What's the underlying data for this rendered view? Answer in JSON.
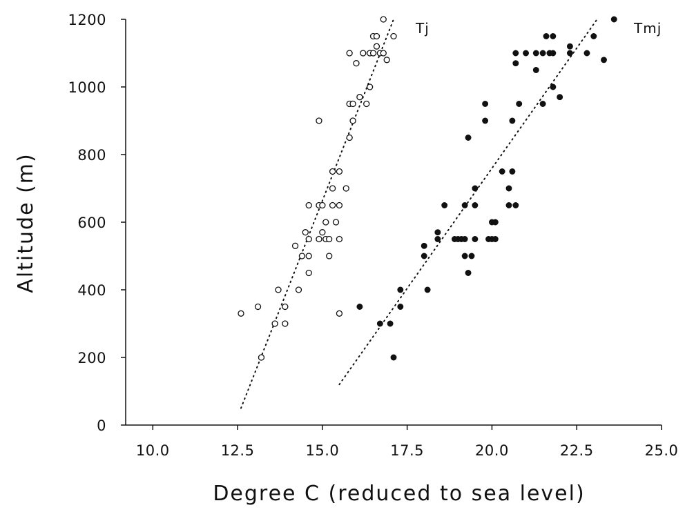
{
  "chart_data": {
    "type": "scatter",
    "xlabel": "Degree C (reduced to sea level)",
    "ylabel": "Altitude (m)",
    "xlim": [
      9.2,
      25.0
    ],
    "ylim": [
      0,
      1200
    ],
    "xticks": [
      10.0,
      12.5,
      15.0,
      17.5,
      20.0,
      22.5,
      25.0
    ],
    "xtick_labels": [
      "10.0",
      "12.5",
      "15.0",
      "17.5",
      "20.0",
      "22.5",
      "25.0"
    ],
    "yticks": [
      0,
      200,
      400,
      600,
      800,
      1000,
      1200
    ],
    "ytick_labels": [
      "0",
      "200",
      "400",
      "600",
      "800",
      "1000",
      "1200"
    ],
    "grid": false,
    "series": [
      {
        "name": "Tj",
        "marker": "open-circle",
        "color": "#111111",
        "points": [
          [
            12.6,
            330
          ],
          [
            13.1,
            350
          ],
          [
            13.2,
            200
          ],
          [
            13.6,
            300
          ],
          [
            13.7,
            400
          ],
          [
            13.9,
            300
          ],
          [
            13.9,
            350
          ],
          [
            14.2,
            530
          ],
          [
            14.3,
            400
          ],
          [
            14.4,
            500
          ],
          [
            14.5,
            570
          ],
          [
            14.6,
            450
          ],
          [
            14.6,
            500
          ],
          [
            14.6,
            550
          ],
          [
            14.6,
            650
          ],
          [
            14.9,
            900
          ],
          [
            14.9,
            550
          ],
          [
            14.9,
            650
          ],
          [
            15.0,
            650
          ],
          [
            15.0,
            570
          ],
          [
            15.1,
            550
          ],
          [
            15.1,
            600
          ],
          [
            15.2,
            500
          ],
          [
            15.2,
            550
          ],
          [
            15.3,
            650
          ],
          [
            15.3,
            700
          ],
          [
            15.3,
            750
          ],
          [
            15.4,
            600
          ],
          [
            15.5,
            550
          ],
          [
            15.5,
            650
          ],
          [
            15.5,
            750
          ],
          [
            15.5,
            330
          ],
          [
            15.7,
            700
          ],
          [
            15.8,
            850
          ],
          [
            15.8,
            950
          ],
          [
            15.8,
            1100
          ],
          [
            15.9,
            950
          ],
          [
            15.9,
            900
          ],
          [
            16.0,
            1070
          ],
          [
            16.1,
            970
          ],
          [
            16.2,
            1100
          ],
          [
            16.3,
            950
          ],
          [
            16.4,
            1000
          ],
          [
            16.4,
            1100
          ],
          [
            16.5,
            1100
          ],
          [
            16.5,
            1150
          ],
          [
            16.6,
            1150
          ],
          [
            16.6,
            1120
          ],
          [
            16.7,
            1100
          ],
          [
            16.8,
            1200
          ],
          [
            16.8,
            1100
          ],
          [
            16.9,
            1080
          ],
          [
            17.1,
            1150
          ]
        ],
        "trend": [
          [
            12.6,
            50
          ],
          [
            17.1,
            1200
          ]
        ]
      },
      {
        "name": "Tmj",
        "marker": "filled-circle",
        "color": "#111111",
        "points": [
          [
            16.1,
            350
          ],
          [
            16.7,
            300
          ],
          [
            17.0,
            300
          ],
          [
            17.1,
            200
          ],
          [
            17.3,
            350
          ],
          [
            17.3,
            400
          ],
          [
            18.0,
            500
          ],
          [
            18.0,
            530
          ],
          [
            18.1,
            400
          ],
          [
            18.4,
            570
          ],
          [
            18.4,
            550
          ],
          [
            18.6,
            650
          ],
          [
            18.9,
            550
          ],
          [
            19.0,
            550
          ],
          [
            19.1,
            550
          ],
          [
            19.2,
            500
          ],
          [
            19.2,
            550
          ],
          [
            19.2,
            650
          ],
          [
            19.3,
            450
          ],
          [
            19.3,
            850
          ],
          [
            19.4,
            500
          ],
          [
            19.5,
            550
          ],
          [
            19.5,
            650
          ],
          [
            19.5,
            700
          ],
          [
            19.8,
            900
          ],
          [
            19.8,
            950
          ],
          [
            19.9,
            550
          ],
          [
            20.0,
            550
          ],
          [
            20.0,
            600
          ],
          [
            20.1,
            600
          ],
          [
            20.1,
            550
          ],
          [
            20.3,
            750
          ],
          [
            20.5,
            650
          ],
          [
            20.5,
            700
          ],
          [
            20.6,
            750
          ],
          [
            20.6,
            900
          ],
          [
            20.7,
            650
          ],
          [
            20.7,
            1070
          ],
          [
            20.7,
            1100
          ],
          [
            20.8,
            950
          ],
          [
            21.0,
            1100
          ],
          [
            21.3,
            1050
          ],
          [
            21.3,
            1100
          ],
          [
            21.5,
            950
          ],
          [
            21.5,
            1100
          ],
          [
            21.6,
            1150
          ],
          [
            21.7,
            1100
          ],
          [
            21.8,
            1000
          ],
          [
            21.8,
            1150
          ],
          [
            21.8,
            1100
          ],
          [
            22.0,
            970
          ],
          [
            22.3,
            1100
          ],
          [
            22.3,
            1120
          ],
          [
            22.8,
            1100
          ],
          [
            23.0,
            1150
          ],
          [
            23.3,
            1080
          ],
          [
            23.6,
            1200
          ]
        ],
        "trend": [
          [
            15.5,
            120
          ],
          [
            23.1,
            1200
          ]
        ]
      }
    ]
  }
}
